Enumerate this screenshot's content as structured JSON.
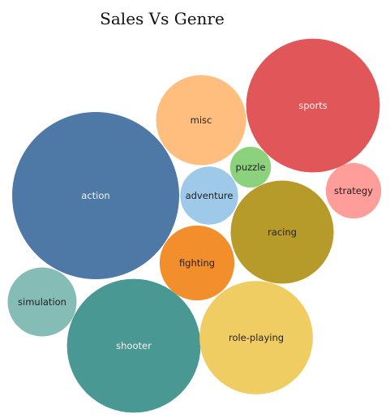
{
  "chart_data": {
    "type": "bubble",
    "title": "Sales Vs Genre",
    "categories": [
      "action",
      "sports",
      "shooter",
      "role-playing",
      "racing",
      "misc",
      "simulation",
      "fighting",
      "adventure",
      "strategy",
      "puzzle"
    ],
    "values": [
      100,
      64,
      64,
      46,
      38,
      29,
      17,
      20,
      12,
      11,
      6
    ],
    "colors": [
      "#4e79a7",
      "#e15759",
      "#499894",
      "#f0cd62",
      "#b69a2a",
      "#ffbe7d",
      "#86bcb6",
      "#f28e2b",
      "#9fc9e8",
      "#ff9d9a",
      "#8cd17d"
    ],
    "label_colors": [
      "#f2f2f2",
      "#f2f2f2",
      "#f2f2f2",
      "#222222",
      "#222222",
      "#222222",
      "#222222",
      "#222222",
      "#222222",
      "#222222",
      "#222222"
    ],
    "legend": "none",
    "grid": false
  }
}
